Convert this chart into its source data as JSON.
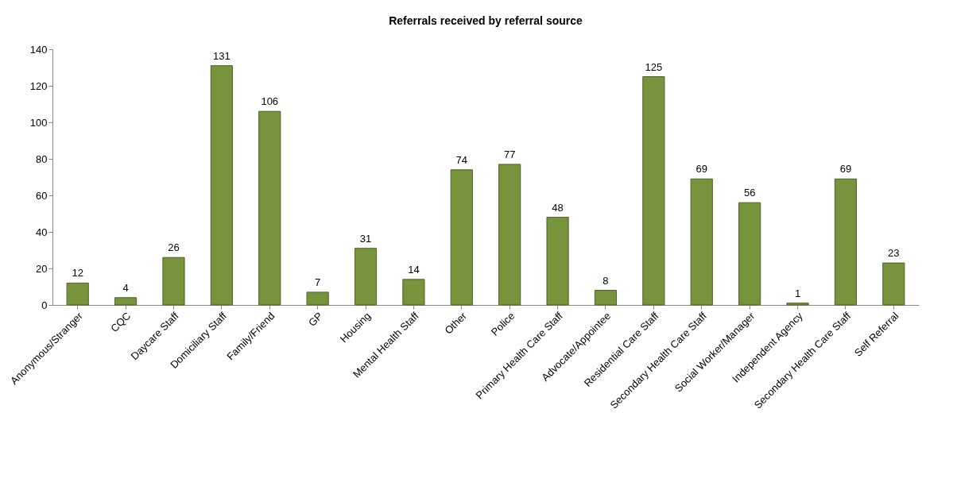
{
  "chart_data": {
    "type": "bar",
    "title": "Referrals received by referral source",
    "categories": [
      "Anonymous/Stranger",
      "CQC",
      "Daycare Staff",
      "Domiciliary Staff",
      "Family/Friend",
      "GP",
      "Housing",
      "Mental Health Staff",
      "Other",
      "Police",
      "Primary Health Care Staff",
      "Advocate/Appointee",
      "Residential Care Staff",
      "Secondary Health Care Staff",
      "Social Worker/Manager",
      "Independent Agency",
      "Secondary Health Care Staff",
      "Self Referral"
    ],
    "values": [
      12,
      4,
      26,
      131,
      106,
      7,
      31,
      14,
      74,
      77,
      48,
      8,
      125,
      69,
      56,
      1,
      69,
      23
    ],
    "color": "#77933c",
    "ylim": [
      0,
      140
    ],
    "yticks": [
      0,
      20,
      40,
      60,
      80,
      100,
      120,
      140
    ],
    "grid": false,
    "data_labels": true
  }
}
